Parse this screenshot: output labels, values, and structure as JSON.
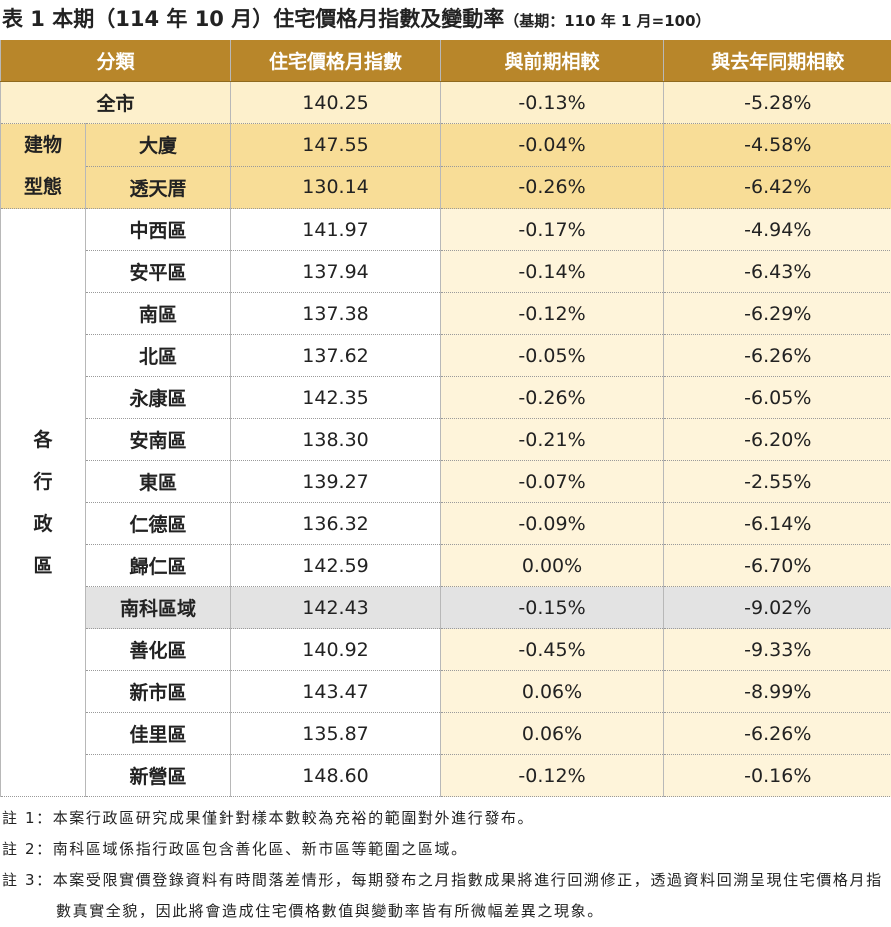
{
  "title": "表 1 本期（114 年 10 月）住宅價格月指數及變動率",
  "subtitle": "（基期：110 年 1 月=100）",
  "table": {
    "header": [
      "分類",
      "住宅價格月指數",
      "與前期相較",
      "與去年同期相較"
    ],
    "total": [
      "全市",
      "140.25",
      "-0.13%",
      "-5.28%"
    ],
    "groups": [
      {
        "label": "建物型態",
        "rows": [
          [
            "大廈",
            "147.55",
            "-0.04%",
            "-4.58%"
          ],
          [
            "透天厝",
            "130.14",
            "-0.26%",
            "-6.42%"
          ]
        ]
      },
      {
        "label": "各行政區",
        "rows": [
          [
            "中西區",
            "141.97",
            "-0.17%",
            "-4.94%"
          ],
          [
            "安平區",
            "137.94",
            "-0.14%",
            "-6.43%"
          ],
          [
            "南區",
            "137.38",
            "-0.12%",
            "-6.29%"
          ],
          [
            "北區",
            "137.62",
            "-0.05%",
            "-6.26%"
          ],
          [
            "永康區",
            "142.35",
            "-0.26%",
            "-6.05%"
          ],
          [
            "安南區",
            "138.30",
            "-0.21%",
            "-6.20%"
          ],
          [
            "東區",
            "139.27",
            "-0.07%",
            "-2.55%"
          ],
          [
            "仁德區",
            "136.32",
            "-0.09%",
            "-6.14%"
          ],
          [
            "歸仁區",
            "142.59",
            "0.00%",
            "-6.70%"
          ],
          [
            "南科區域",
            "142.43",
            "-0.15%",
            "-9.02%"
          ],
          [
            "善化區",
            "140.92",
            "-0.45%",
            "-9.33%"
          ],
          [
            "新市區",
            "143.47",
            "0.06%",
            "-8.99%"
          ],
          [
            "佳里區",
            "135.87",
            "0.06%",
            "-6.26%"
          ],
          [
            "新營區",
            "148.60",
            "-0.12%",
            "-0.16%"
          ]
        ]
      }
    ]
  },
  "notes": [
    "註 1：本案行政區研究成果僅針對樣本數較為充裕的範圍對外進行發布。",
    "註 2：南科區域係指行政區包含善化區、新市區等範圍之區域。",
    "註 3：本案受限實價登錄資料有時間落差情形，每期發布之月指數成果將進行回溯修正，透過資料回溯呈現住宅價格月指數真實全貌，因此將會造成住宅價格數值與變動率皆有所微幅差異之現象。"
  ]
}
